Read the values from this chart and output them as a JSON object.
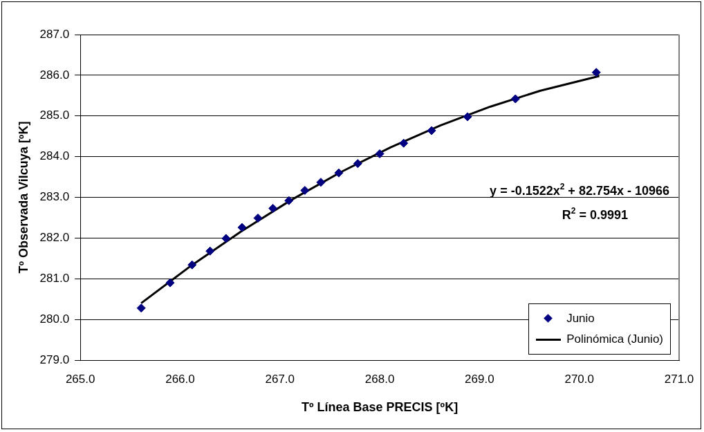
{
  "chart_data": {
    "type": "scatter",
    "xlabel": "Tº Línea Base PRECIS [ºK]",
    "ylabel": "Tº Observada Vilcuya [ºK]",
    "xlim": [
      265,
      271
    ],
    "xticks": [
      {
        "value": 265,
        "label": "265.0"
      },
      {
        "value": 266,
        "label": "266.0"
      },
      {
        "value": 267,
        "label": "267.0"
      },
      {
        "value": 268,
        "label": "268.0"
      },
      {
        "value": 269,
        "label": "269.0"
      },
      {
        "value": 270,
        "label": "270.0"
      },
      {
        "value": 271,
        "label": "271.0"
      }
    ],
    "ylim": [
      279,
      287
    ],
    "yticks": [
      {
        "value": 279,
        "label": "279.0"
      },
      {
        "value": 280,
        "label": "280.0"
      },
      {
        "value": 281,
        "label": "281.0"
      },
      {
        "value": 282,
        "label": "282.0"
      },
      {
        "value": 283,
        "label": "283.0"
      },
      {
        "value": 284,
        "label": "284.0"
      },
      {
        "value": 285,
        "label": "285.0"
      },
      {
        "value": 286,
        "label": "286.0"
      },
      {
        "value": 287,
        "label": "287.0"
      }
    ],
    "grid": "y",
    "legend": "bottom right",
    "marker": "diamond",
    "series": [
      {
        "name": "Junio",
        "color": "#000080",
        "x": [
          265.61,
          265.9,
          266.12,
          266.3,
          266.46,
          266.62,
          266.78,
          266.93,
          267.09,
          267.25,
          267.41,
          267.59,
          267.78,
          268.0,
          268.24,
          268.52,
          268.88,
          269.36,
          270.17
        ],
        "values": [
          280.28,
          280.9,
          281.34,
          281.68,
          281.99,
          282.26,
          282.49,
          282.73,
          282.92,
          283.17,
          283.37,
          283.6,
          283.83,
          284.07,
          284.33,
          284.64,
          284.98,
          285.42,
          286.07
        ]
      },
      {
        "name": "Polinómica (Junio)",
        "type": "line",
        "color": "#000000",
        "marker": "none",
        "line_style": "solid",
        "x": [
          265.61,
          266.11,
          266.61,
          267.11,
          267.61,
          268.11,
          268.61,
          269.11,
          269.61,
          270.2
        ],
        "values": [
          280.4,
          281.32,
          282.16,
          282.93,
          283.62,
          284.23,
          284.77,
          285.23,
          285.62,
          285.98
        ]
      }
    ],
    "annotations": [
      "y = -0.1522x$^{2}$ + 82.754x - 10966",
      "R$^{2}$ = 0.9991"
    ]
  }
}
